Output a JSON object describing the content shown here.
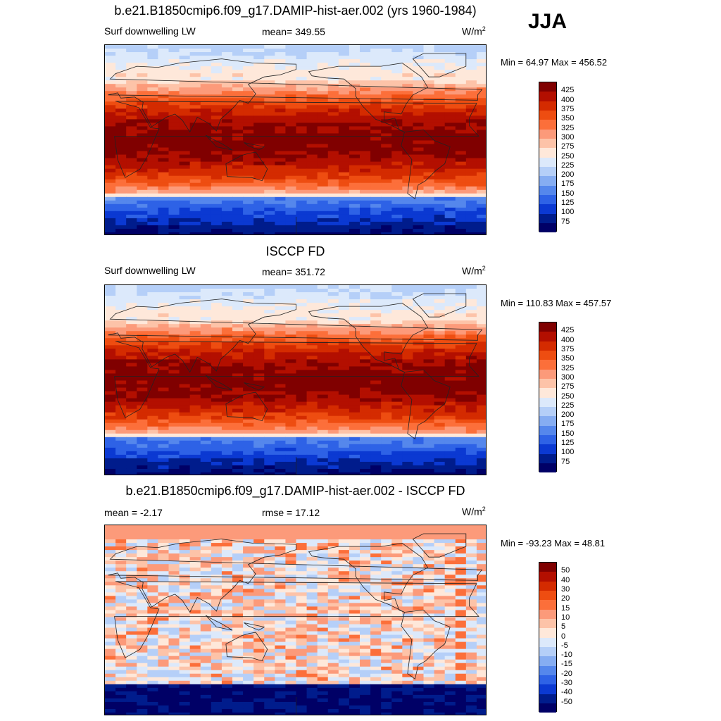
{
  "season": "JJA",
  "colors": {
    "levels14": [
      "#800000",
      "#b30f00",
      "#d42b00",
      "#ee4d11",
      "#fc6f3a",
      "#fc9a7a",
      "#fdc3a8",
      "#fee8da",
      "#dce9fb",
      "#b5cff8",
      "#86adf2",
      "#5587ec",
      "#2e62e6",
      "#0b39d2",
      "#001c8c",
      "#000066"
    ],
    "coast": "#222222"
  },
  "panels": [
    {
      "title": "b.e21.B1850cmip6.f09_g17.DAMIP-hist-aer.002 (yrs 1960-1984)",
      "left_label": "Surf downwelling LW",
      "center_label": "mean= 349.55",
      "units": "W/m",
      "units_sup": "2",
      "minmax": "Min =  64.97 Max = 456.52",
      "colorbar_labels": [
        "425",
        "400",
        "375",
        "350",
        "325",
        "300",
        "275",
        "250",
        "225",
        "200",
        "175",
        "150",
        "125",
        "100",
        "75"
      ],
      "map_kind": "abs"
    },
    {
      "title": "ISCCP FD",
      "left_label": "Surf downwelling LW",
      "center_label": "mean= 351.72",
      "units": "W/m",
      "units_sup": "2",
      "minmax": "Min = 110.83 Max = 457.57",
      "colorbar_labels": [
        "425",
        "400",
        "375",
        "350",
        "325",
        "300",
        "275",
        "250",
        "225",
        "200",
        "175",
        "150",
        "125",
        "100",
        "75"
      ],
      "map_kind": "abs"
    },
    {
      "title": "b.e21.B1850cmip6.f09_g17.DAMIP-hist-aer.002 - ISCCP FD",
      "left_label": "mean =  -2.17",
      "center_label": "rmse =  17.12",
      "units": "W/m",
      "units_sup": "2",
      "minmax": "Min = -93.23 Max =  48.81",
      "colorbar_labels": [
        "50",
        "40",
        "30",
        "20",
        "15",
        "10",
        "5",
        "0",
        "-5",
        "-10",
        "-15",
        "-20",
        "-30",
        "-40",
        "-50"
      ],
      "map_kind": "diff"
    }
  ]
}
